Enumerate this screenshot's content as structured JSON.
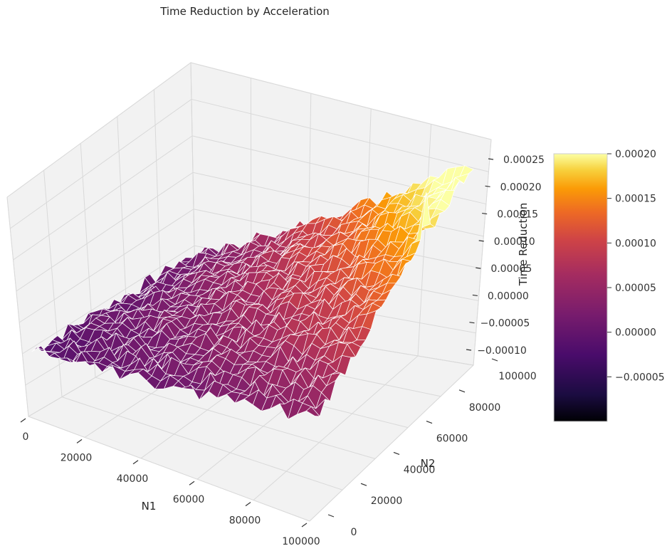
{
  "chart_data": {
    "type": "surface3d",
    "title": "Time Reduction by Acceleration",
    "xlabel": "N1",
    "ylabel": "N2",
    "zlabel": "Time Reduction",
    "x_ticks": [
      "0",
      "20000",
      "40000",
      "60000",
      "80000",
      "100000"
    ],
    "y_ticks": [
      "0",
      "20000",
      "40000",
      "60000",
      "80000",
      "100000"
    ],
    "z_ticks": [
      "−0.00010",
      "−0.00005",
      "0.00000",
      "0.00005",
      "0.00010",
      "0.00015",
      "0.00020",
      "0.00025"
    ],
    "z_ticks_display": [
      "−0.00010",
      "−0.00005",
      "0.00000",
      "0.00005",
      "0.00010",
      "0.00015",
      "0.00020",
      "0.00025"
    ],
    "xlim": [
      0,
      100000
    ],
    "ylim": [
      0,
      100000
    ],
    "zlim": [
      -0.0001,
      0.00025
    ],
    "grid_points": [
      {
        "x": 0,
        "y": 0,
        "z": -1e-05
      },
      {
        "x": 100000,
        "y": 0,
        "z": 4e-05
      },
      {
        "x": 0,
        "y": 100000,
        "z": 1e-05
      },
      {
        "x": 100000,
        "y": 100000,
        "z": 0.0002
      }
    ],
    "spike": {
      "x": 100000,
      "y": 70000,
      "z": 0.00025
    },
    "colormap": "inferno",
    "colorbar": {
      "ticks": [
        "−0.00005",
        "0.00000",
        "0.00005",
        "0.00010",
        "0.00015",
        "0.00020"
      ],
      "values": [
        -5e-05,
        0,
        5e-05,
        0.0001,
        0.00015,
        0.0002
      ],
      "range": [
        -0.0001,
        0.0002
      ]
    },
    "colors": {
      "pane": "#f2f2f2",
      "grid": "#d9d9d9",
      "edge": "#ffffff",
      "cmap_stops": [
        "#000004",
        "#420a68",
        "#932667",
        "#dd513a",
        "#fca50a",
        "#fcffa4"
      ]
    }
  }
}
